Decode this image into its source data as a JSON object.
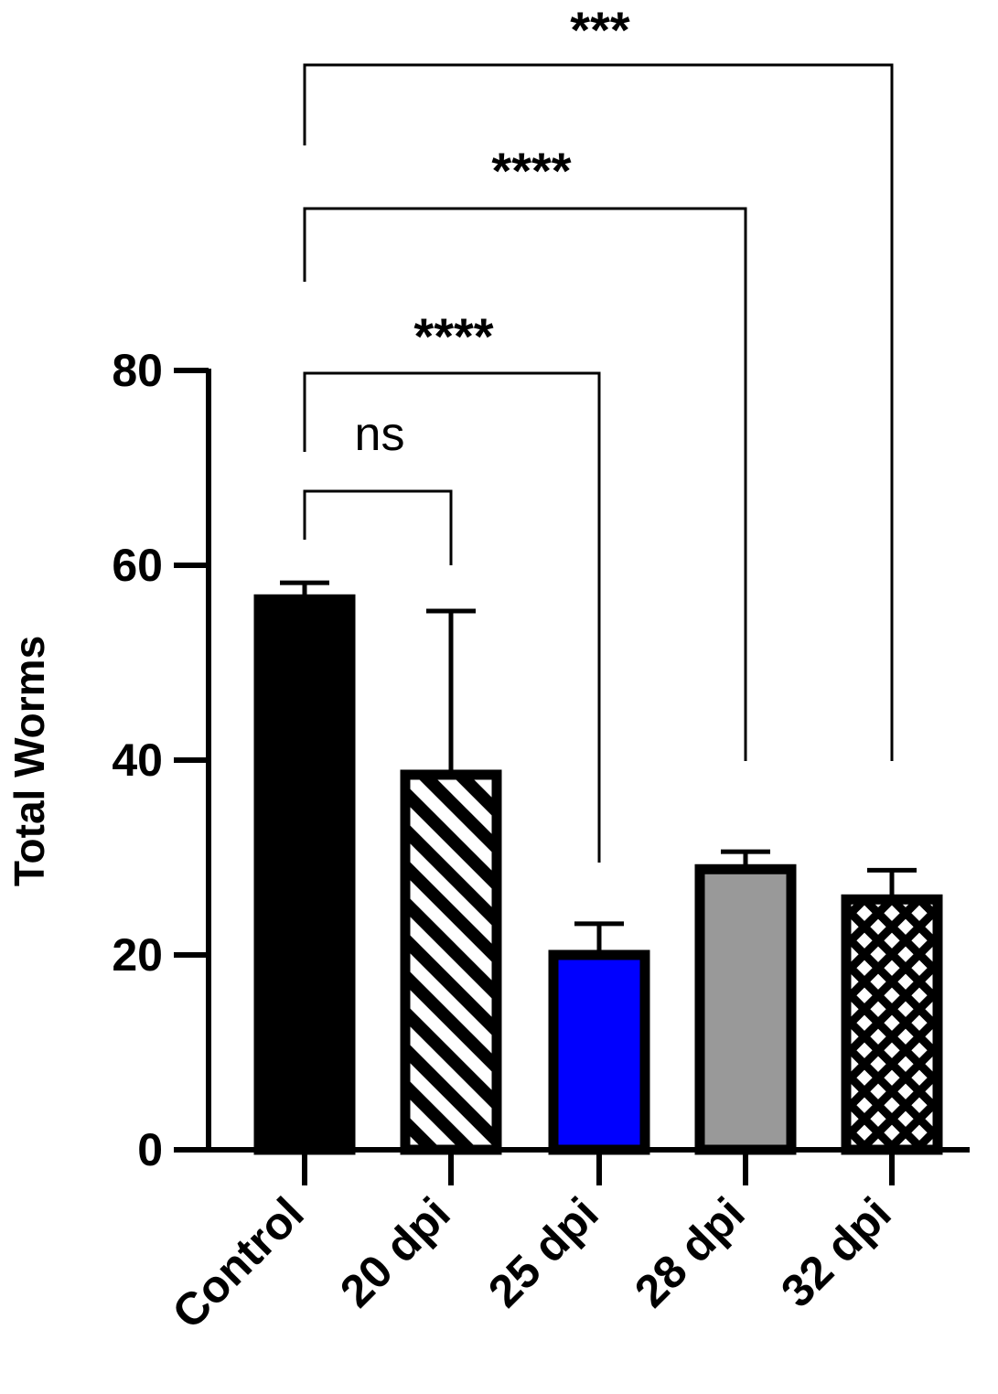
{
  "chart_data": {
    "type": "bar",
    "ylabel": "Total Worms",
    "xlabel": "",
    "ylim": [
      0,
      80
    ],
    "yticks": [
      0,
      20,
      40,
      60,
      80
    ],
    "categories": [
      "Control",
      "20 dpi",
      "25 dpi",
      "28 dpi",
      "32 dpi"
    ],
    "values": [
      56.5,
      38.5,
      20,
      28.8,
      25.7
    ],
    "errors": [
      1.7,
      16.8,
      3.2,
      1.8,
      3.0
    ],
    "bar_styles": [
      {
        "fill": "#000000",
        "pattern": "solid"
      },
      {
        "fill": "#ffffff",
        "pattern": "diagonal-stripes"
      },
      {
        "fill": "#0000ff",
        "pattern": "solid"
      },
      {
        "fill": "#999999",
        "pattern": "solid"
      },
      {
        "fill": "#ffffff",
        "pattern": "crosshatch"
      }
    ],
    "comparisons": [
      {
        "from": "Control",
        "to": "20 dpi",
        "label": "ns"
      },
      {
        "from": "Control",
        "to": "25 dpi",
        "label": "****"
      },
      {
        "from": "Control",
        "to": "28 dpi",
        "label": "****"
      },
      {
        "from": "Control",
        "to": "32 dpi",
        "label": "***"
      }
    ]
  }
}
